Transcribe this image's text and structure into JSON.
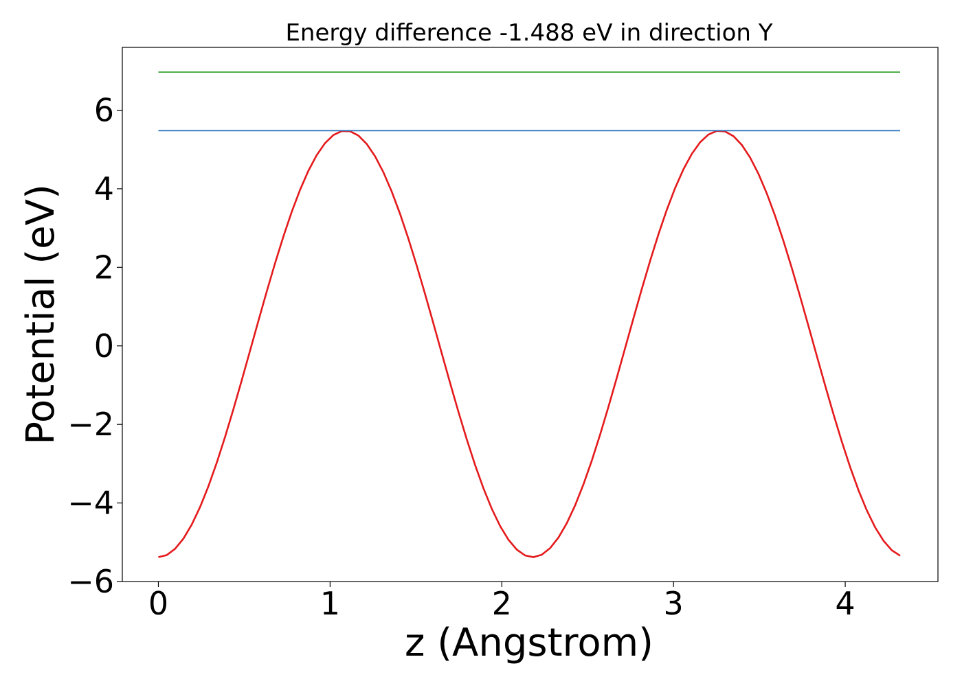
{
  "chart_data": {
    "type": "line",
    "title": "Energy difference -1.488 eV in direction Y",
    "xlabel": "z (Angstrom)",
    "ylabel": "Potential (eV)",
    "xlim": [
      -0.21,
      4.54
    ],
    "ylim": [
      -6.0,
      7.6
    ],
    "x_ticks": [
      0,
      1,
      2,
      3,
      4
    ],
    "x_tick_labels": [
      "0",
      "1",
      "2",
      "3",
      "4"
    ],
    "y_ticks": [
      -6,
      -4,
      -2,
      0,
      2,
      4,
      6
    ],
    "y_tick_labels": [
      "−6",
      "−4",
      "−2",
      "0",
      "2",
      "4",
      "6"
    ],
    "grid": false,
    "legend": "none",
    "series": [
      {
        "role": "potential curve",
        "color": "#e41a1c",
        "form": "sinusoid",
        "x_range": [
          0.0,
          4.32
        ],
        "n_points": 90,
        "minimum": -5.38,
        "maximum": 5.48,
        "min_at": [
          0.0,
          2.18
        ],
        "max_at": [
          1.09,
          3.27
        ],
        "period": 2.18
      },
      {
        "role": "horizontal level",
        "color": "#3a7fc4",
        "x": [
          0.0,
          4.32
        ],
        "y": [
          5.48,
          5.48
        ]
      },
      {
        "role": "horizontal level",
        "color": "#4daf4a",
        "x": [
          0.0,
          4.32
        ],
        "y": [
          6.97,
          6.97
        ]
      }
    ]
  }
}
